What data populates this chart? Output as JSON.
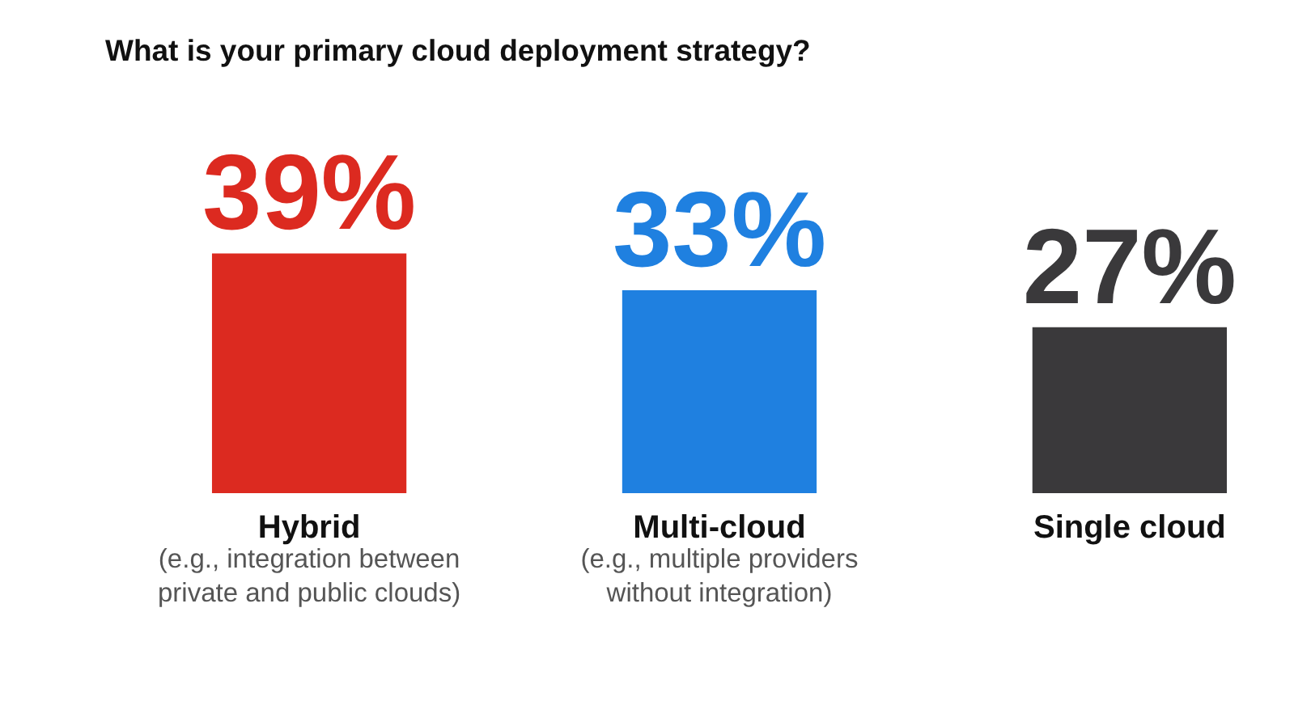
{
  "chart_data": {
    "type": "bar",
    "title": "What is your primary cloud deployment strategy?",
    "categories": [
      "Hybrid",
      "Multi-cloud",
      "Single cloud"
    ],
    "values": [
      39,
      33,
      27
    ],
    "colors": [
      "#dc2a20",
      "#1f80e0",
      "#3a393b"
    ],
    "value_labels": [
      "39%",
      "33%",
      "27%"
    ],
    "annotations": [
      "(e.g., integration between private and public clouds)",
      "(e.g., multiple providers without integration)"
    ]
  }
}
